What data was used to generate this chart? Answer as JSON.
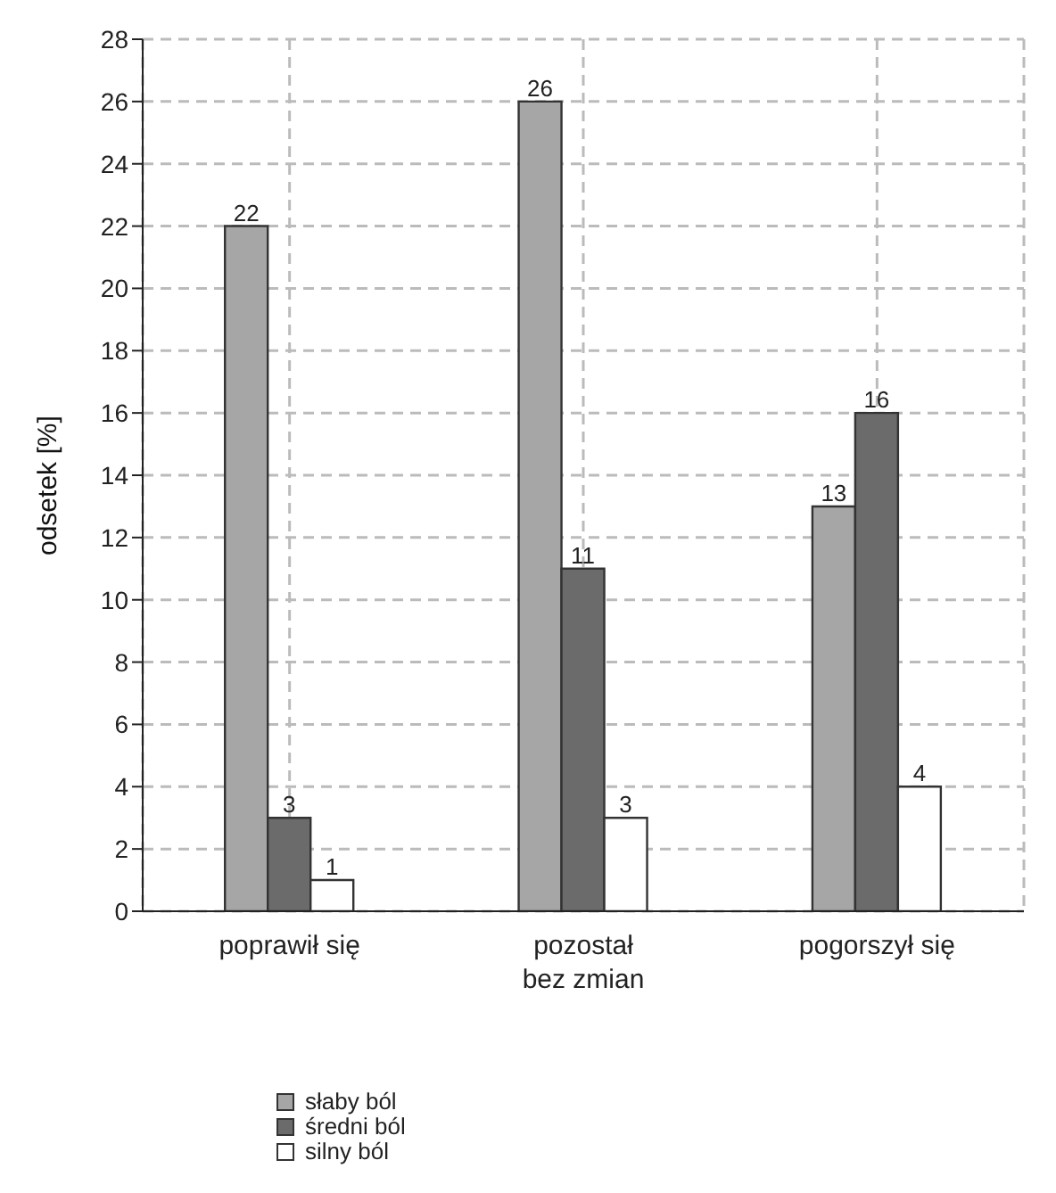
{
  "chart_data": {
    "type": "bar",
    "ylabel": "odsetek [%]",
    "categories": [
      "poprawił się",
      "pozostał\nbez zmian",
      "pogorszył się"
    ],
    "series": [
      {
        "name": "słaby ból",
        "color": "#a6a6a6",
        "values": [
          22,
          26,
          13
        ]
      },
      {
        "name": "średni ból",
        "color": "#6b6b6b",
        "values": [
          3,
          11,
          16
        ]
      },
      {
        "name": "silny ból",
        "color": "#ffffff",
        "values": [
          1,
          3,
          4
        ]
      }
    ],
    "ylim": [
      0,
      28
    ],
    "yticks": [
      0,
      2,
      4,
      6,
      8,
      10,
      12,
      14,
      16,
      18,
      20,
      22,
      24,
      26,
      28
    ],
    "grid": true,
    "data_labels": true,
    "legend": "bottom left"
  }
}
